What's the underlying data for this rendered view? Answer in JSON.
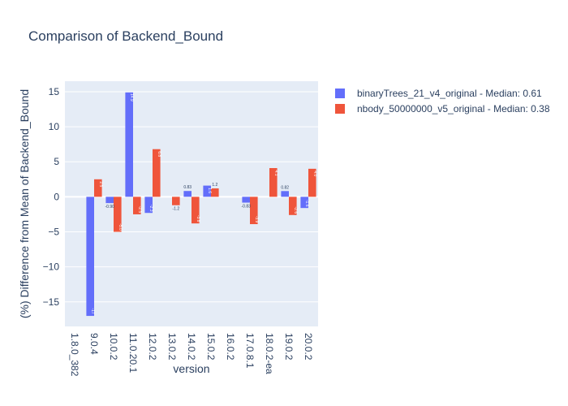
{
  "chart_data": {
    "type": "bar",
    "title": "Comparison of Backend_Bound",
    "xlabel": "version",
    "ylabel": "(%) Difference from Mean of Backend_Bound",
    "ylim": [
      -18.5,
      16.5
    ],
    "yticks": [
      15,
      10,
      5,
      0,
      -5,
      -10,
      -15
    ],
    "ytick_labels": [
      "15",
      "10",
      "5",
      "0",
      "−5",
      "−10",
      "−15"
    ],
    "grid": true,
    "legend_position": "top-right",
    "categories": [
      "1.8.0_382",
      "9.0.4",
      "10.0.2",
      "11.0.20.1",
      "12.0.2",
      "13.0.2",
      "14.0.2",
      "15.0.2",
      "16.0.2",
      "17.0.8.1",
      "18.0.2-ea",
      "19.0.2",
      "20.0.2"
    ],
    "series": [
      {
        "name": "binaryTrees_21_v4_original - Median: 0.61",
        "color": "#636efa",
        "values": [
          null,
          -17.0,
          -0.9,
          14.9,
          -2.3,
          null,
          0.83,
          1.6,
          null,
          -0.83,
          null,
          0.82,
          -1.6
        ],
        "labels": [
          "",
          "-17",
          "-0.90",
          "14.9",
          "-2.3",
          "",
          "0.83",
          "1.6",
          "",
          "-0.83",
          "",
          "0.82",
          "-1.6"
        ]
      },
      {
        "name": "nbody_50000000_v5_original - Median: 0.38",
        "color": "#ef553b",
        "values": [
          null,
          2.5,
          -5.0,
          -2.5,
          6.8,
          -1.2,
          -3.8,
          1.2,
          null,
          -3.9,
          4.1,
          -2.6,
          4.0
        ],
        "labels": [
          "",
          "2.5",
          "-5.0",
          "-2.5",
          "6.8",
          "-1.2",
          "-3.8",
          "1.2",
          "",
          "-3.9",
          "4.1",
          "-2.6",
          "4.0"
        ]
      }
    ]
  }
}
